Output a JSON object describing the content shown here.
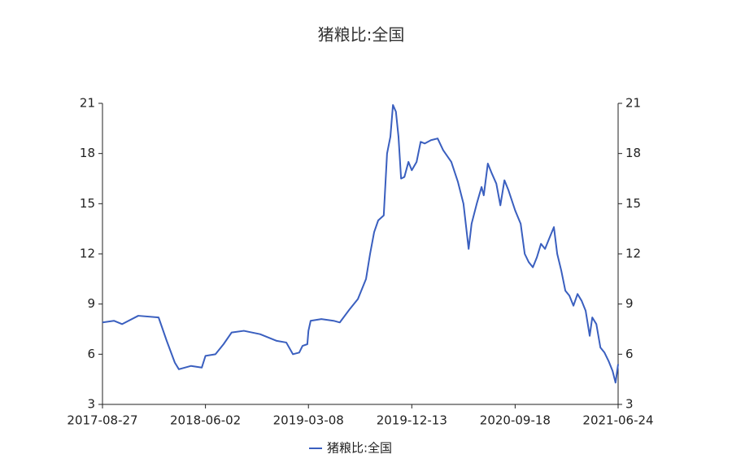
{
  "chart_data": {
    "type": "line",
    "title": "猪粮比:全国",
    "x": [
      "2017-08-27",
      "2017-09-27",
      "2017-10-19",
      "2017-12-02",
      "2018-01-26",
      "2018-02-17",
      "2018-03-11",
      "2018-03-22",
      "2018-04-24",
      "2018-05-23",
      "2018-06-02",
      "2018-06-29",
      "2018-07-21",
      "2018-08-12",
      "2018-09-14",
      "2018-10-28",
      "2018-12-12",
      "2019-01-07",
      "2019-01-25",
      "2019-02-11",
      "2019-02-20",
      "2019-03-05",
      "2019-03-08",
      "2019-03-14",
      "2019-04-12",
      "2019-05-15",
      "2019-06-01",
      "2019-06-28",
      "2019-07-20",
      "2019-08-11",
      "2019-08-22",
      "2019-09-02",
      "2019-09-13",
      "2019-09-28",
      "2019-10-07",
      "2019-10-16",
      "2019-10-23",
      "2019-10-31",
      "2019-11-07",
      "2019-11-14",
      "2019-11-23",
      "2019-12-04",
      "2019-12-13",
      "2019-12-26",
      "2020-01-06",
      "2020-01-17",
      "2020-02-03",
      "2020-02-21",
      "2020-03-07",
      "2020-03-29",
      "2020-04-16",
      "2020-05-01",
      "2020-05-15",
      "2020-05-23",
      "2020-06-06",
      "2020-06-19",
      "2020-06-25",
      "2020-07-06",
      "2020-07-17",
      "2020-07-29",
      "2020-08-09",
      "2020-08-20",
      "2020-08-31",
      "2020-09-18",
      "2020-10-03",
      "2020-10-14",
      "2020-10-25",
      "2020-11-05",
      "2020-11-16",
      "2020-11-27",
      "2020-12-08",
      "2020-12-19",
      "2021-01-01",
      "2021-01-10",
      "2021-01-21",
      "2021-02-01",
      "2021-02-12",
      "2021-02-23",
      "2021-03-06",
      "2021-03-17",
      "2021-03-28",
      "2021-04-08",
      "2021-04-15",
      "2021-04-26",
      "2021-05-07",
      "2021-05-18",
      "2021-05-29",
      "2021-06-09",
      "2021-06-17",
      "2021-06-24"
    ],
    "series": [
      {
        "name": "猪粮比:全国",
        "color": "#3a5fbf",
        "values": [
          7.9,
          8.0,
          7.8,
          8.3,
          8.2,
          6.8,
          5.5,
          5.1,
          5.3,
          5.2,
          5.9,
          6.0,
          6.6,
          7.3,
          7.4,
          7.2,
          6.8,
          6.7,
          6.0,
          6.1,
          6.5,
          6.6,
          7.4,
          8.0,
          8.1,
          8.0,
          7.9,
          8.7,
          9.3,
          10.5,
          12.0,
          13.3,
          14.0,
          14.3,
          18.0,
          19.0,
          20.9,
          20.5,
          19.0,
          16.5,
          16.6,
          17.5,
          17.0,
          17.5,
          18.7,
          18.6,
          18.8,
          18.9,
          18.2,
          17.5,
          16.3,
          15.0,
          12.3,
          13.8,
          15.0,
          16.0,
          15.5,
          17.4,
          16.8,
          16.2,
          14.9,
          16.4,
          15.8,
          14.6,
          13.8,
          12.0,
          11.5,
          11.2,
          11.8,
          12.6,
          12.3,
          12.9,
          13.6,
          12.0,
          11.0,
          9.8,
          9.5,
          8.9,
          9.6,
          9.2,
          8.6,
          7.1,
          8.2,
          7.8,
          6.4,
          6.1,
          5.6,
          5.0,
          4.3,
          5.4
        ]
      }
    ],
    "xlim": [
      "2017-08-27",
      "2021-06-24"
    ],
    "xticks": [
      "2017-08-27",
      "2018-06-02",
      "2019-03-08",
      "2019-12-13",
      "2020-09-18",
      "2021-06-24"
    ],
    "ylim": [
      3,
      21
    ],
    "yticks": [
      3,
      6,
      9,
      12,
      15,
      18,
      21
    ],
    "y2lim": [
      3,
      21
    ],
    "y2ticks": [
      3,
      6,
      9,
      12,
      15,
      18,
      21
    ],
    "legend": "bottom"
  }
}
